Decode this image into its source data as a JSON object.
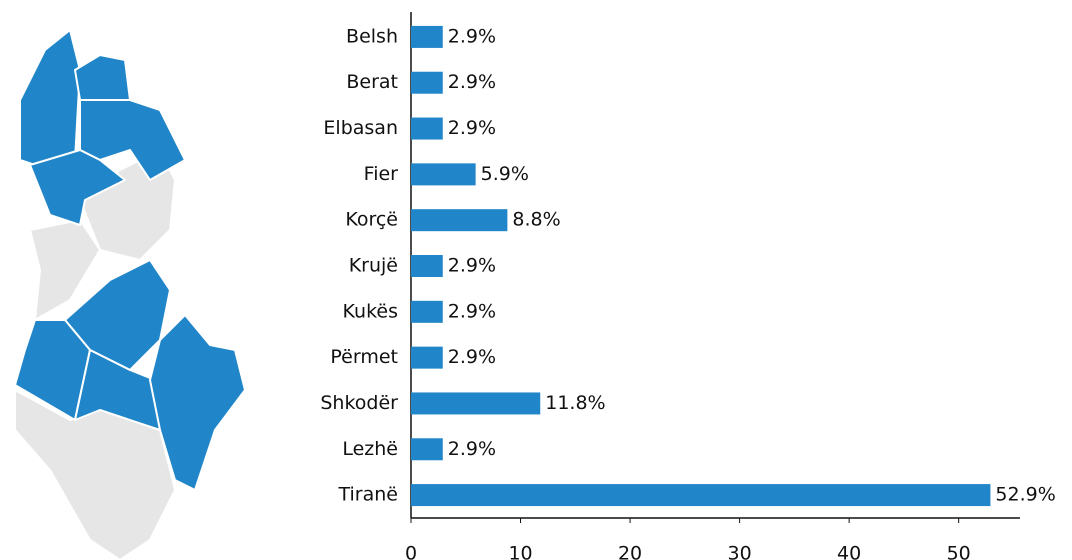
{
  "chart_data": {
    "type": "bar",
    "orientation": "horizontal",
    "categories": [
      "Belsh",
      "Berat",
      "Elbasan",
      "Fier",
      "Korçë",
      "Krujë",
      "Kukës",
      "Përmet",
      "Shkodër",
      "Lezhë",
      "Tiranë"
    ],
    "values": [
      2.9,
      2.9,
      2.9,
      5.9,
      8.8,
      2.9,
      2.9,
      2.9,
      11.8,
      2.9,
      52.9
    ],
    "value_labels": [
      "2.9%",
      "2.9%",
      "2.9%",
      "5.9%",
      "8.8%",
      "2.9%",
      "2.9%",
      "2.9%",
      "11.8%",
      "2.9%",
      "52.9%"
    ],
    "color": "#2086c9",
    "xlim": [
      0,
      55.6
    ],
    "xticks": [
      0,
      10,
      20,
      30,
      40,
      50
    ]
  }
}
